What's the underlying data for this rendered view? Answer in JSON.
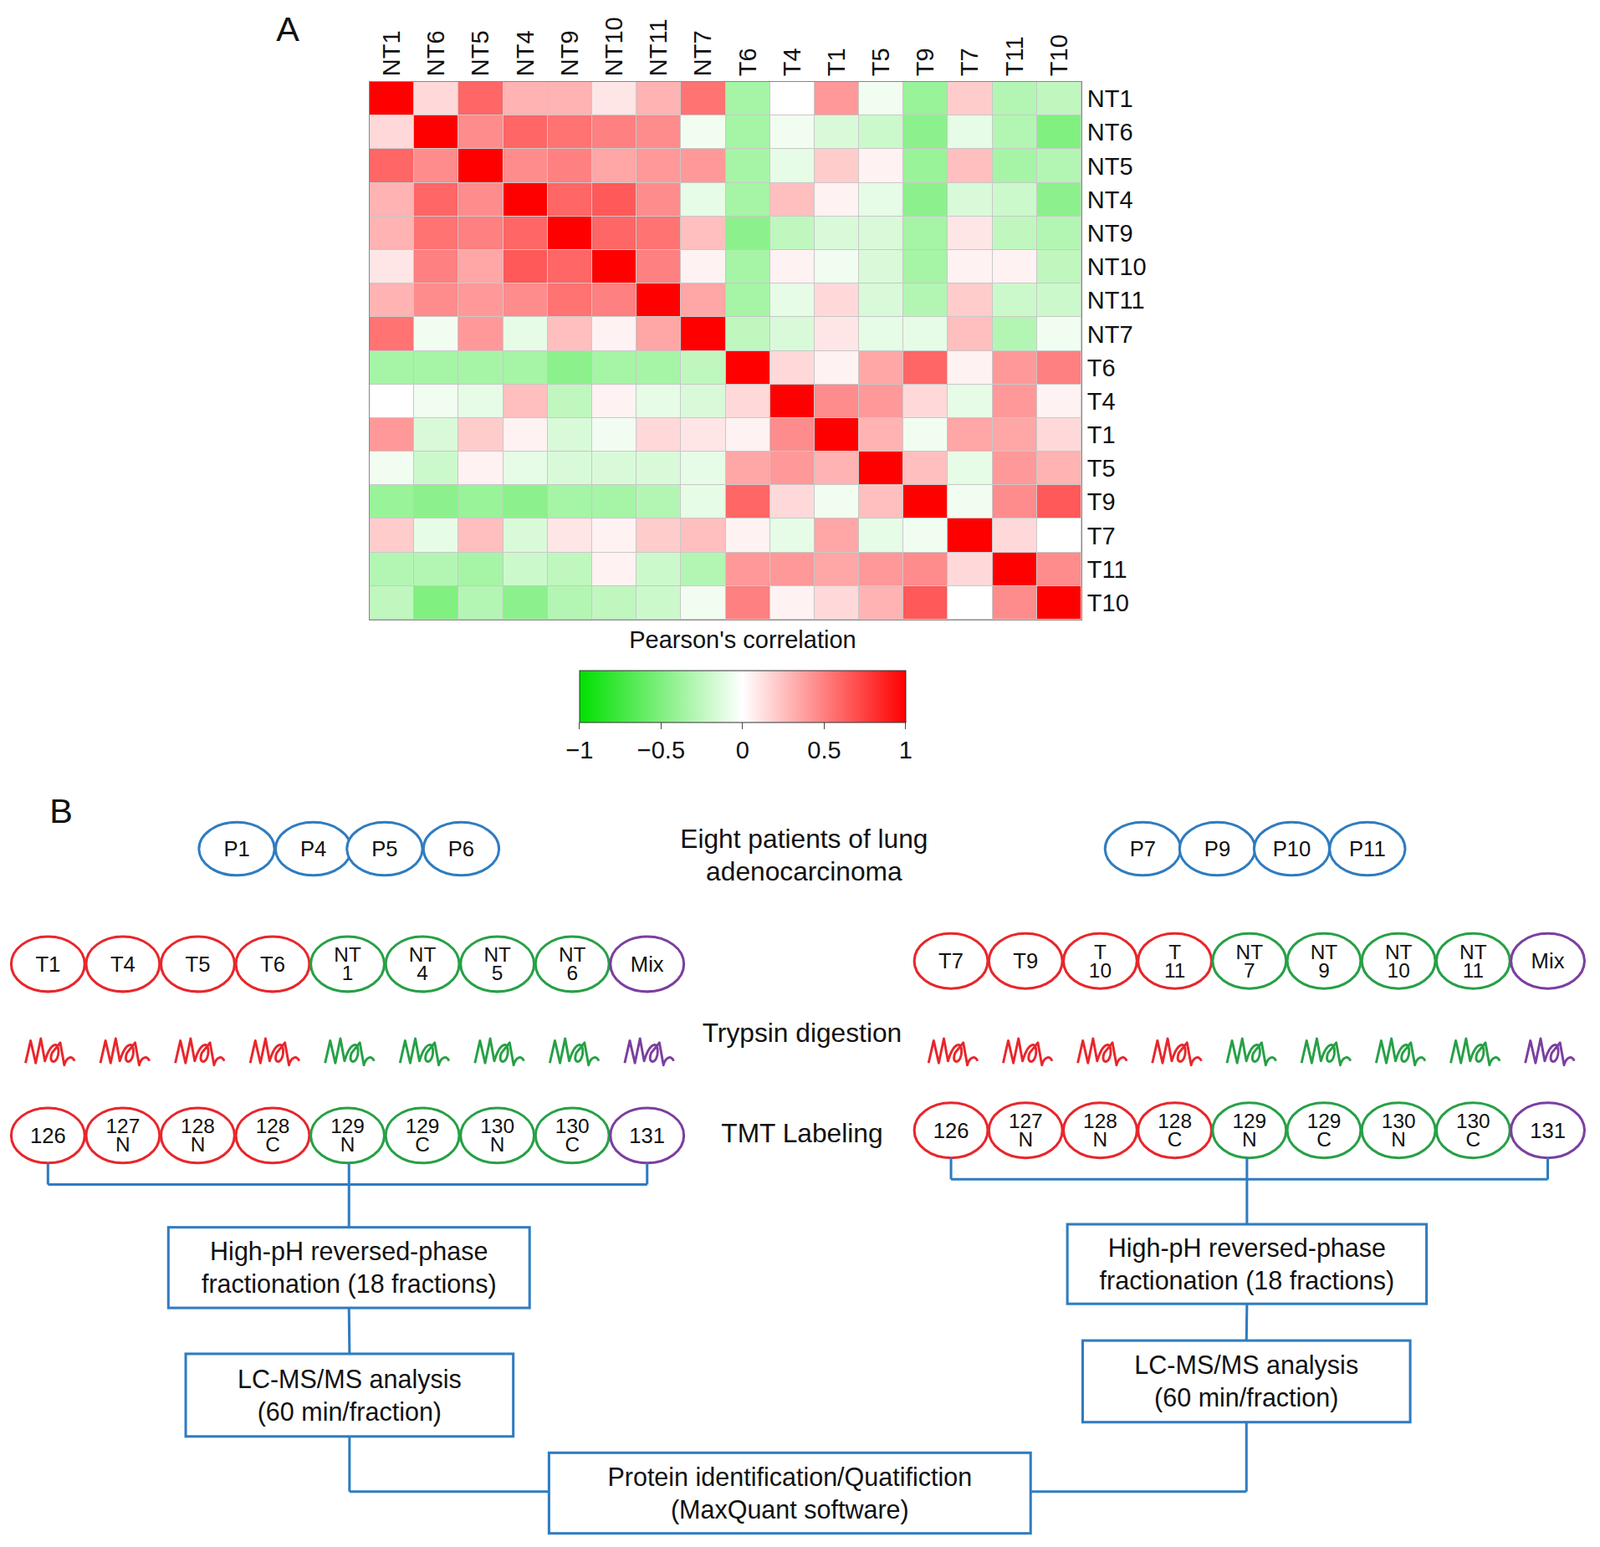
{
  "chart_data": {
    "type": "heatmap",
    "annotations": [
      "A"
    ],
    "x": [
      "NT1",
      "NT6",
      "NT5",
      "NT4",
      "NT9",
      "NT10",
      "NT11",
      "NT7",
      "T6",
      "T4",
      "T1",
      "T5",
      "T9",
      "T7",
      "T11",
      "T10"
    ],
    "y": [
      "NT1",
      "NT6",
      "NT5",
      "NT4",
      "NT9",
      "NT10",
      "NT11",
      "NT7",
      "T6",
      "T4",
      "T1",
      "T5",
      "T9",
      "T7",
      "T11",
      "T10"
    ],
    "cells": [
      [
        1,
        0.15,
        0.6,
        0.3,
        0.3,
        0.1,
        0.3,
        0.55,
        -0.35,
        0,
        0.4,
        -0.05,
        -0.4,
        0.2,
        -0.3,
        -0.25
      ],
      [
        0.15,
        1,
        0.45,
        0.6,
        0.55,
        0.5,
        0.45,
        -0.05,
        -0.35,
        -0.05,
        -0.15,
        -0.2,
        -0.45,
        -0.1,
        -0.3,
        -0.5
      ],
      [
        0.6,
        0.45,
        1,
        0.45,
        0.5,
        0.35,
        0.4,
        0.4,
        -0.35,
        -0.1,
        0.2,
        0.05,
        -0.4,
        0.25,
        -0.35,
        -0.3
      ],
      [
        0.3,
        0.6,
        0.45,
        1,
        0.6,
        0.65,
        0.45,
        -0.1,
        -0.35,
        0.25,
        0.05,
        -0.1,
        -0.45,
        -0.15,
        -0.2,
        -0.45
      ],
      [
        0.3,
        0.55,
        0.5,
        0.6,
        1,
        0.6,
        0.55,
        0.25,
        -0.45,
        -0.25,
        -0.15,
        -0.15,
        -0.35,
        0.1,
        -0.25,
        -0.3
      ],
      [
        0.1,
        0.5,
        0.35,
        0.65,
        0.6,
        1,
        0.5,
        0.05,
        -0.35,
        0.05,
        -0.05,
        -0.15,
        -0.35,
        0.05,
        0.05,
        -0.25
      ],
      [
        0.3,
        0.45,
        0.4,
        0.45,
        0.55,
        0.5,
        1,
        0.35,
        -0.35,
        -0.1,
        0.15,
        -0.15,
        -0.3,
        0.2,
        -0.2,
        -0.2
      ],
      [
        0.55,
        -0.05,
        0.4,
        -0.1,
        0.25,
        0.05,
        0.35,
        1,
        -0.25,
        -0.15,
        0.1,
        -0.1,
        -0.1,
        0.25,
        -0.3,
        -0.05
      ],
      [
        -0.35,
        -0.35,
        -0.35,
        -0.35,
        -0.45,
        -0.35,
        -0.35,
        -0.25,
        1,
        0.15,
        0.05,
        0.35,
        0.6,
        0.05,
        0.4,
        0.5
      ],
      [
        0,
        -0.05,
        -0.1,
        0.25,
        -0.25,
        0.05,
        -0.1,
        -0.15,
        0.15,
        1,
        0.45,
        0.4,
        0.15,
        -0.1,
        0.4,
        0.05
      ],
      [
        0.4,
        -0.15,
        0.2,
        0.05,
        -0.15,
        -0.05,
        0.15,
        0.1,
        0.05,
        0.45,
        1,
        0.3,
        -0.05,
        0.35,
        0.35,
        0.15
      ],
      [
        -0.05,
        -0.2,
        0.05,
        -0.1,
        -0.15,
        -0.15,
        -0.15,
        -0.1,
        0.35,
        0.4,
        0.3,
        1,
        0.25,
        -0.1,
        0.4,
        0.3
      ],
      [
        -0.4,
        -0.45,
        -0.4,
        -0.45,
        -0.35,
        -0.35,
        -0.3,
        -0.1,
        0.6,
        0.15,
        -0.05,
        0.25,
        1,
        -0.05,
        0.45,
        0.65
      ],
      [
        0.2,
        -0.1,
        0.25,
        -0.15,
        0.1,
        0.05,
        0.2,
        0.25,
        0.05,
        -0.1,
        0.35,
        -0.1,
        -0.05,
        1,
        0.15,
        0
      ],
      [
        -0.3,
        -0.3,
        -0.35,
        -0.2,
        -0.25,
        0.05,
        -0.2,
        -0.3,
        0.4,
        0.4,
        0.35,
        0.4,
        0.45,
        0.15,
        1,
        0.45
      ],
      [
        -0.25,
        -0.5,
        -0.3,
        -0.45,
        -0.3,
        -0.25,
        -0.2,
        -0.05,
        0.5,
        0.05,
        0.15,
        0.3,
        0.65,
        0,
        0.45,
        1
      ]
    ],
    "colorbar": {
      "title": "Pearson's correlation",
      "range": [
        -1,
        1
      ],
      "ticks": [
        {
          "value": -1,
          "label": "−1"
        },
        {
          "value": -0.5,
          "label": "−0.5"
        },
        0,
        0.5,
        1
      ],
      "colors": [
        "#00e000",
        "#ffffff",
        "#ff0000"
      ]
    }
  },
  "diagram": {
    "panel_label": "B",
    "title_lines": [
      "Eight patients of lung",
      "adenocarcinoma"
    ],
    "groups": [
      {
        "patients": [
          "P1",
          "P4",
          "P5",
          "P6"
        ],
        "samples": [
          {
            "label": "T1",
            "kind": "tumor"
          },
          {
            "label": "T4",
            "kind": "tumor"
          },
          {
            "label": "T5",
            "kind": "tumor"
          },
          {
            "label": "T6",
            "kind": "tumor"
          },
          {
            "label": "NT 1",
            "kind": "normal"
          },
          {
            "label": "NT 4",
            "kind": "normal"
          },
          {
            "label": "NT 5",
            "kind": "normal"
          },
          {
            "label": "NT 6",
            "kind": "normal"
          },
          {
            "label": "Mix",
            "kind": "mix"
          }
        ],
        "tmt": [
          "126",
          "127 N",
          "128 N",
          "128 C",
          "129 N",
          "129 C",
          "130 N",
          "130 C",
          "131"
        ]
      },
      {
        "patients": [
          "P7",
          "P9",
          "P10",
          "P11"
        ],
        "samples": [
          {
            "label": "T7",
            "kind": "tumor"
          },
          {
            "label": "T9",
            "kind": "tumor"
          },
          {
            "label": "T 10",
            "kind": "tumor"
          },
          {
            "label": "T 11",
            "kind": "tumor"
          },
          {
            "label": "NT 7",
            "kind": "normal"
          },
          {
            "label": "NT 9",
            "kind": "normal"
          },
          {
            "label": "NT 10",
            "kind": "normal"
          },
          {
            "label": "NT 11",
            "kind": "normal"
          },
          {
            "label": "Mix",
            "kind": "mix"
          }
        ],
        "tmt": [
          "126",
          "127 N",
          "128 N",
          "128 C",
          "129 N",
          "129 C",
          "130 N",
          "130 C",
          "131"
        ]
      }
    ],
    "steps": {
      "digestion": "Trypsin digestion",
      "labeling": "TMT Labeling"
    },
    "boxes": [
      [
        "High-pH reversed-phase",
        "fractionation (18 fractions)"
      ],
      [
        "LC-MS/MS analysis",
        "(60 min/fraction)"
      ]
    ],
    "final": [
      "Protein identification/Quatifiction",
      "(MaxQuant software)"
    ]
  }
}
